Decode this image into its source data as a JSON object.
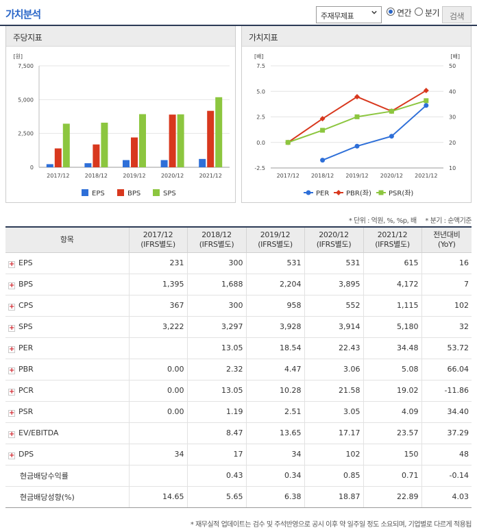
{
  "header": {
    "title": "가치분석",
    "select_value": "주재무제표",
    "radio_annual": "연간",
    "radio_quarter": "분기",
    "search_label": "검색"
  },
  "panels": {
    "left_title": "주당지표",
    "right_title": "가치지표"
  },
  "chart_data": [
    {
      "type": "bar",
      "unit_label": "[원]",
      "categories": [
        "2017/12",
        "2018/12",
        "2019/12",
        "2020/12",
        "2021/12"
      ],
      "ylim": [
        0,
        7500
      ],
      "yticks": [
        "7,500",
        "5,000",
        "2,500",
        "0"
      ],
      "ytick_values": [
        7500,
        5000,
        2500,
        0
      ],
      "series": [
        {
          "name": "EPS",
          "color": "#2e6fd8",
          "values": [
            231,
            300,
            531,
            531,
            615
          ]
        },
        {
          "name": "BPS",
          "color": "#d8381e",
          "values": [
            1395,
            1688,
            2204,
            3895,
            4172
          ]
        },
        {
          "name": "SPS",
          "color": "#8cc63f",
          "values": [
            3222,
            3297,
            3928,
            3914,
            5180
          ]
        }
      ]
    },
    {
      "type": "line",
      "left_unit_label": "[배]",
      "right_unit_label": "[배]",
      "categories": [
        "2017/12",
        "2018/12",
        "2019/12",
        "2020/12",
        "2021/12"
      ],
      "ylim_left": [
        -2.5,
        7.5
      ],
      "ylim_right": [
        10,
        50
      ],
      "yticks_left": [
        "7.5",
        "5.0",
        "2.5",
        "0.0",
        "-2.5"
      ],
      "ytick_left_values": [
        7.5,
        5,
        2.5,
        0,
        -2.5
      ],
      "yticks_right": [
        "50",
        "40",
        "30",
        "20",
        "10"
      ],
      "ytick_right_values": [
        50,
        40,
        30,
        20,
        10
      ],
      "series": [
        {
          "name": "PER",
          "axis": "right",
          "color": "#2e6fd8",
          "marker": "circle",
          "values": [
            null,
            13.05,
            18.54,
            22.43,
            34.48
          ]
        },
        {
          "name": "PBR(좌)",
          "axis": "left",
          "color": "#d8381e",
          "marker": "diamond",
          "values": [
            0.0,
            2.32,
            4.47,
            3.06,
            5.08
          ]
        },
        {
          "name": "PSR(좌)",
          "axis": "left",
          "color": "#8cc63f",
          "marker": "square",
          "values": [
            0.0,
            1.19,
            2.51,
            3.05,
            4.09
          ]
        }
      ]
    }
  ],
  "notes": {
    "unit": "* 단위 : 억원, %, %p, 배",
    "quarter": "* 분기 : 순액기준"
  },
  "table": {
    "headers": [
      {
        "line1": "항목",
        "line2": ""
      },
      {
        "line1": "2017/12",
        "line2": "(IFRS별도)"
      },
      {
        "line1": "2018/12",
        "line2": "(IFRS별도)"
      },
      {
        "line1": "2019/12",
        "line2": "(IFRS별도)"
      },
      {
        "line1": "2020/12",
        "line2": "(IFRS별도)"
      },
      {
        "line1": "2021/12",
        "line2": "(IFRS별도)"
      },
      {
        "line1": "전년대비",
        "line2": "(YoY)"
      }
    ],
    "rows": [
      {
        "label": "EPS",
        "expand": true,
        "cells": [
          "231",
          "300",
          "531",
          "531",
          "615",
          "16"
        ],
        "neg": false
      },
      {
        "label": "BPS",
        "expand": true,
        "cells": [
          "1,395",
          "1,688",
          "2,204",
          "3,895",
          "4,172",
          "7"
        ],
        "neg": false
      },
      {
        "label": "CPS",
        "expand": true,
        "cells": [
          "367",
          "300",
          "958",
          "552",
          "1,115",
          "102"
        ],
        "neg": false
      },
      {
        "label": "SPS",
        "expand": true,
        "cells": [
          "3,222",
          "3,297",
          "3,928",
          "3,914",
          "5,180",
          "32"
        ],
        "neg": false
      },
      {
        "label": "PER",
        "expand": true,
        "cells": [
          "",
          "13.05",
          "18.54",
          "22.43",
          "34.48",
          "53.72"
        ],
        "neg": false
      },
      {
        "label": "PBR",
        "expand": true,
        "cells": [
          "0.00",
          "2.32",
          "4.47",
          "3.06",
          "5.08",
          "66.04"
        ],
        "neg": false
      },
      {
        "label": "PCR",
        "expand": true,
        "cells": [
          "0.00",
          "13.05",
          "10.28",
          "21.58",
          "19.02",
          "-11.86"
        ],
        "neg": true
      },
      {
        "label": "PSR",
        "expand": true,
        "cells": [
          "0.00",
          "1.19",
          "2.51",
          "3.05",
          "4.09",
          "34.40"
        ],
        "neg": false
      },
      {
        "label": "EV/EBITDA",
        "expand": true,
        "cells": [
          "",
          "8.47",
          "13.65",
          "17.17",
          "23.57",
          "37.29"
        ],
        "neg": false
      },
      {
        "label": "DPS",
        "expand": true,
        "cells": [
          "34",
          "17",
          "34",
          "102",
          "150",
          "48"
        ],
        "neg": false
      },
      {
        "label": "현금배당수익률",
        "expand": false,
        "cells": [
          "",
          "0.43",
          "0.34",
          "0.85",
          "0.71",
          "-0.14"
        ],
        "neg": true
      },
      {
        "label": "현금배당성향(%)",
        "expand": false,
        "cells": [
          "14.65",
          "5.65",
          "6.38",
          "18.87",
          "22.89",
          "4.03"
        ],
        "neg": false
      }
    ]
  },
  "footnote": "* 재무실적 업데이트는 검수 및 주석반영으로 공시 이후 약 일주일 정도 소요되며, 기업별로 다르게 적용됩"
}
